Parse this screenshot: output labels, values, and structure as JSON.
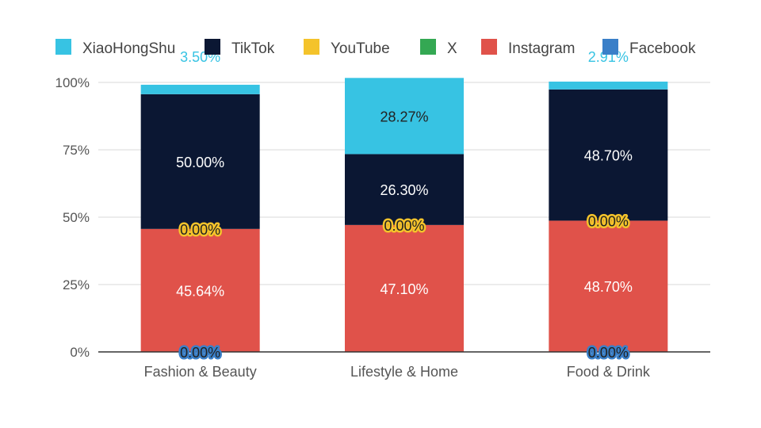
{
  "chart_data": {
    "type": "bar",
    "stacked": true,
    "categories": [
      "Fashion & Beauty",
      "Lifestyle & Home",
      "Food & Drink"
    ],
    "series": [
      {
        "name": "Facebook",
        "color": "#3a7fc8",
        "values": [
          0.0,
          0.0,
          0.0
        ],
        "labels": [
          "0.00%",
          "",
          "0.00%"
        ],
        "label_style": "outlined"
      },
      {
        "name": "Instagram",
        "color": "#e0524a",
        "values": [
          45.64,
          47.1,
          48.7
        ],
        "labels": [
          "45.64%",
          "47.10%",
          "48.70%"
        ],
        "label_style": "light"
      },
      {
        "name": "X",
        "color": "#34a853",
        "values": [
          0.0,
          0.0,
          0.0
        ],
        "labels": [
          "",
          "",
          ""
        ],
        "label_style": "light"
      },
      {
        "name": "YouTube",
        "color": "#f4c32b",
        "values": [
          0.0,
          0.0,
          0.0
        ],
        "labels": [
          "0.00%",
          "0.00%",
          "0.00%"
        ],
        "label_style": "outlined"
      },
      {
        "name": "TikTok",
        "color": "#0b1733",
        "values": [
          50.0,
          26.3,
          48.7
        ],
        "labels": [
          "50.00%",
          "26.30%",
          "48.70%"
        ],
        "label_style": "light"
      },
      {
        "name": "XiaoHongShu",
        "color": "#37c3e3",
        "values": [
          3.5,
          28.27,
          2.91
        ],
        "labels": [
          "3.50%",
          "28.27%",
          "2.91%"
        ],
        "label_style": "dark"
      }
    ],
    "legend_order": [
      "XiaoHongShu",
      "TikTok",
      "YouTube",
      "X",
      "Instagram",
      "Facebook"
    ],
    "legend_position": "top",
    "yticks": [
      "0%",
      "25%",
      "50%",
      "75%",
      "100%"
    ],
    "ylim": [
      0,
      100
    ],
    "grid": true,
    "title": "",
    "xlabel": "",
    "ylabel": ""
  }
}
